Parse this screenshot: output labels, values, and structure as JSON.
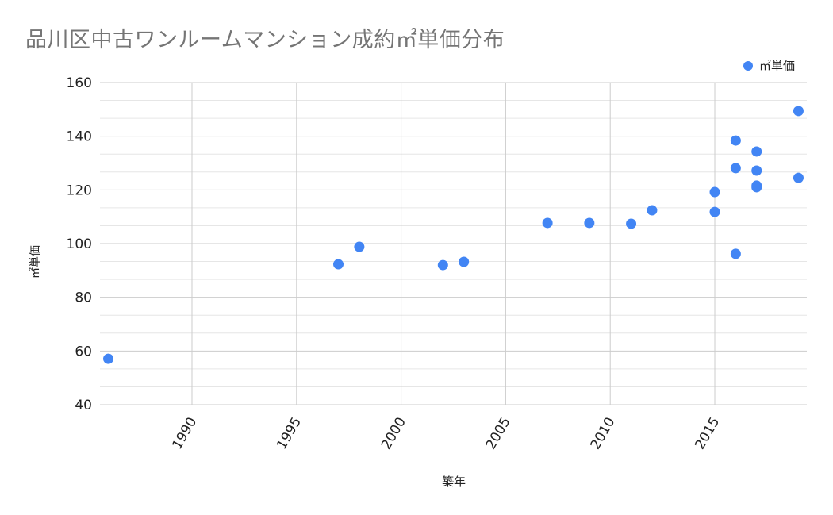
{
  "chart_data": {
    "type": "scatter",
    "title": "品川区中古ワンルームマンション成約㎡単価分布",
    "xlabel": "築年",
    "ylabel": "㎡単価",
    "legend": [
      {
        "name": "㎡単価",
        "color": "#4285F4"
      }
    ],
    "legend_position": "top-right",
    "grid": true,
    "xlim": [
      1985.6,
      2019.4
    ],
    "ylim": [
      40,
      160
    ],
    "x_ticks": [
      1990,
      1995,
      2000,
      2005,
      2010,
      2015
    ],
    "y_ticks": [
      40,
      60,
      80,
      100,
      120,
      140,
      160
    ],
    "series": [
      {
        "name": "㎡単価",
        "color": "#4285F4",
        "points": [
          {
            "x": 1986,
            "y": 57.1
          },
          {
            "x": 1997,
            "y": 92.3
          },
          {
            "x": 1998,
            "y": 98.8
          },
          {
            "x": 2002,
            "y": 92.0
          },
          {
            "x": 2003,
            "y": 93.2
          },
          {
            "x": 2007,
            "y": 107.7
          },
          {
            "x": 2009,
            "y": 107.7
          },
          {
            "x": 2011,
            "y": 107.4
          },
          {
            "x": 2012,
            "y": 112.4
          },
          {
            "x": 2015,
            "y": 111.8
          },
          {
            "x": 2015,
            "y": 119.2
          },
          {
            "x": 2016,
            "y": 96.2
          },
          {
            "x": 2016,
            "y": 128.1
          },
          {
            "x": 2016,
            "y": 138.4
          },
          {
            "x": 2017,
            "y": 134.3
          },
          {
            "x": 2017,
            "y": 127.2
          },
          {
            "x": 2017,
            "y": 121.6
          },
          {
            "x": 2017,
            "y": 121.0
          },
          {
            "x": 2019,
            "y": 149.4
          },
          {
            "x": 2019,
            "y": 124.5
          }
        ]
      }
    ]
  },
  "header": {
    "title": "品川区中古ワンルームマンション成約㎡単価分布"
  },
  "legend": {
    "label": "㎡単価",
    "color": "#4285F4"
  },
  "axes": {
    "x_title": "築年",
    "y_title": "㎡単価"
  },
  "colors": {
    "major_grid": "#cccccc",
    "minor_grid": "#e6e6e6",
    "point": "#4285F4",
    "title": "#757575",
    "text": "#222222"
  }
}
